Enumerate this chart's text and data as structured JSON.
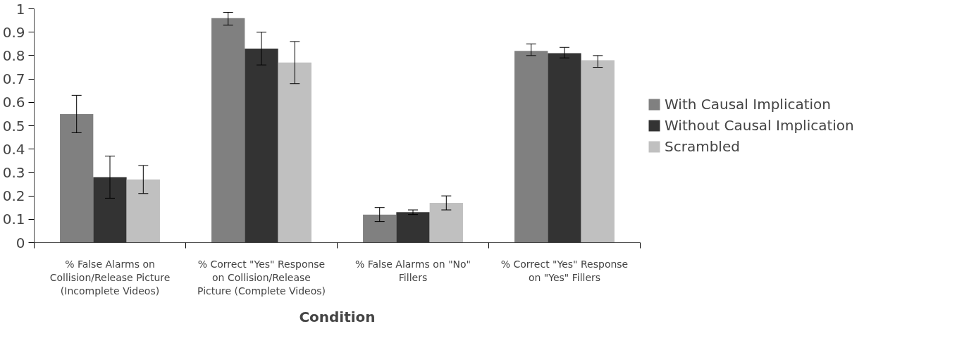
{
  "chart_data": {
    "type": "bar",
    "xlabel": "Condition",
    "categories": [
      "% False Alarms on Collision/Release Picture (Incomplete Videos)",
      "% Correct \"Yes\" Response on Collision/Release Picture (Complete Videos)",
      "% False Alarms on \"No\" Fillers",
      "% Correct \"Yes\" Response on \"Yes\" Fillers"
    ],
    "series": [
      {
        "name": "With Causal Implication",
        "color": "#808080",
        "values": [
          0.55,
          0.96,
          0.12,
          0.82
        ],
        "errors": [
          [
            0.47,
            0.63
          ],
          [
            0.93,
            0.985
          ],
          [
            0.09,
            0.15
          ],
          [
            0.8,
            0.85
          ]
        ]
      },
      {
        "name": "Without Causal Implication",
        "color": "#333333",
        "values": [
          0.28,
          0.83,
          0.13,
          0.81
        ],
        "errors": [
          [
            0.19,
            0.37
          ],
          [
            0.76,
            0.9
          ],
          [
            0.12,
            0.14
          ],
          [
            0.79,
            0.835
          ]
        ]
      },
      {
        "name": "Scrambled",
        "color": "#c0c0c0",
        "values": [
          0.27,
          0.77,
          0.17,
          0.78
        ],
        "errors": [
          [
            0.21,
            0.33
          ],
          [
            0.68,
            0.86
          ],
          [
            0.14,
            0.2
          ],
          [
            0.75,
            0.8
          ]
        ]
      }
    ],
    "ylim": [
      0,
      1
    ],
    "yticks": [
      0,
      0.1,
      0.2,
      0.3,
      0.4,
      0.5,
      0.6,
      0.7,
      0.8,
      0.9,
      1
    ],
    "grid": false,
    "legend": "right"
  }
}
